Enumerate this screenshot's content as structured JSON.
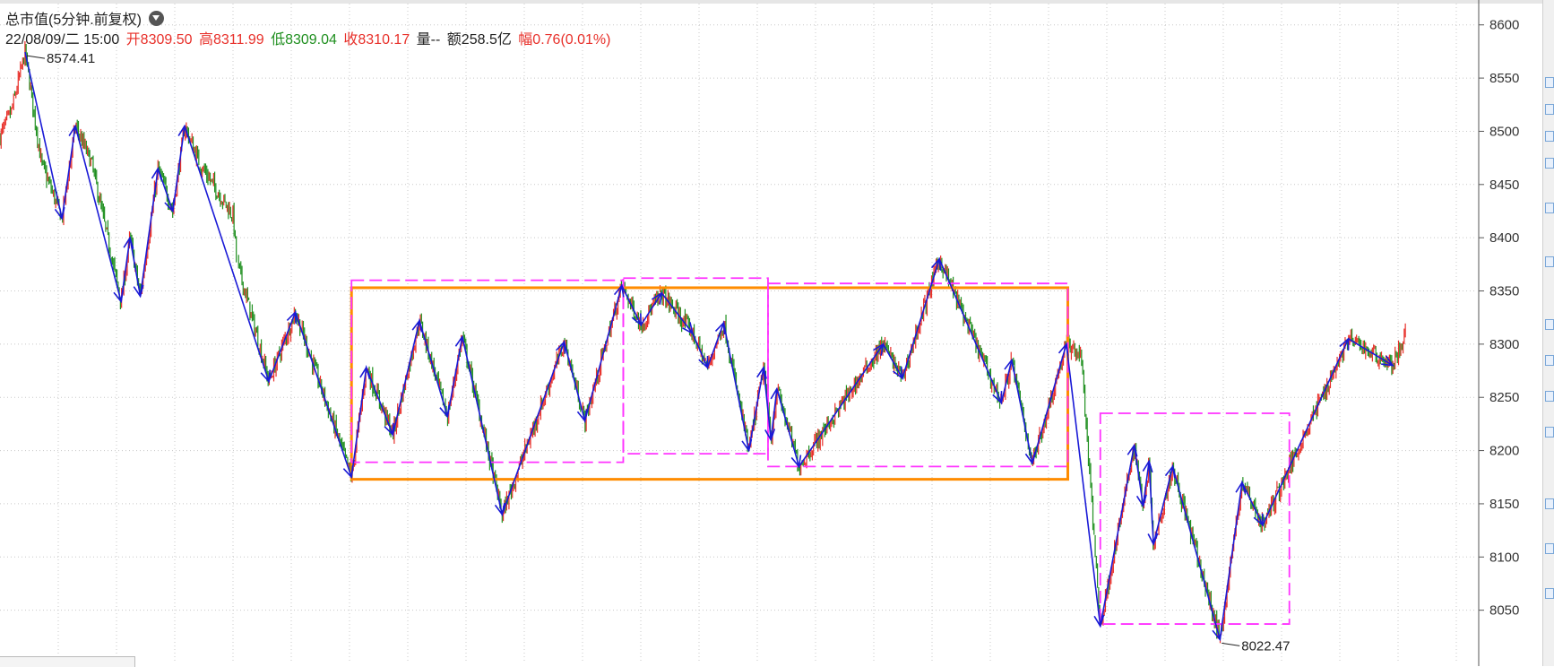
{
  "header": {
    "title": "总市值(5分钟.前复权)"
  },
  "bar_info": {
    "datetime": "22/08/09/二 15:00",
    "open": "开8309.50",
    "high": "高8311.99",
    "low": "低8309.04",
    "close": "收8310.17",
    "volume": "量--",
    "amount": "额258.5亿",
    "change": "幅0.76(0.01%)"
  },
  "colors": {
    "up": "#e8302a",
    "down": "#1f8f1f",
    "zigzag": "#1a1ad6",
    "center_box": "#ff8c00",
    "sub_box": "#ff33ff",
    "grid": "#c8c8c8"
  },
  "chart_data": {
    "type": "line",
    "ylim": [
      8000,
      8620
    ],
    "yticks": [
      8050,
      8100,
      8150,
      8200,
      8250,
      8300,
      8350,
      8400,
      8450,
      8500,
      8550,
      8600
    ],
    "grid": true,
    "xlim": [
      0,
      1000
    ],
    "price_path": [
      {
        "x": 0,
        "y": 8495
      },
      {
        "x": 8,
        "y": 8520
      },
      {
        "x": 17,
        "y": 8574.41
      },
      {
        "x": 28,
        "y": 8470
      },
      {
        "x": 42,
        "y": 8418
      },
      {
        "x": 51,
        "y": 8505
      },
      {
        "x": 62,
        "y": 8470
      },
      {
        "x": 82,
        "y": 8340
      },
      {
        "x": 88,
        "y": 8400
      },
      {
        "x": 95,
        "y": 8345
      },
      {
        "x": 107,
        "y": 8465
      },
      {
        "x": 117,
        "y": 8425
      },
      {
        "x": 125,
        "y": 8505
      },
      {
        "x": 135,
        "y": 8470
      },
      {
        "x": 158,
        "y": 8420
      },
      {
        "x": 160,
        "y": 8380
      },
      {
        "x": 182,
        "y": 8265
      },
      {
        "x": 200,
        "y": 8330
      },
      {
        "x": 238,
        "y": 8175
      },
      {
        "x": 248,
        "y": 8278
      },
      {
        "x": 266,
        "y": 8215
      },
      {
        "x": 284,
        "y": 8322
      },
      {
        "x": 303,
        "y": 8232
      },
      {
        "x": 313,
        "y": 8307
      },
      {
        "x": 340,
        "y": 8140
      },
      {
        "x": 382,
        "y": 8302
      },
      {
        "x": 396,
        "y": 8228
      },
      {
        "x": 421,
        "y": 8355
      },
      {
        "x": 434,
        "y": 8318
      },
      {
        "x": 448,
        "y": 8348
      },
      {
        "x": 469,
        "y": 8310
      },
      {
        "x": 479,
        "y": 8278
      },
      {
        "x": 490,
        "y": 8320
      },
      {
        "x": 507,
        "y": 8200
      },
      {
        "x": 517,
        "y": 8278
      },
      {
        "x": 522,
        "y": 8210
      },
      {
        "x": 526,
        "y": 8258
      },
      {
        "x": 541,
        "y": 8185
      },
      {
        "x": 598,
        "y": 8300
      },
      {
        "x": 611,
        "y": 8268
      },
      {
        "x": 636,
        "y": 8380
      },
      {
        "x": 678,
        "y": 8245
      },
      {
        "x": 685,
        "y": 8285
      },
      {
        "x": 699,
        "y": 8188
      },
      {
        "x": 722,
        "y": 8300
      },
      {
        "x": 732,
        "y": 8290
      },
      {
        "x": 745,
        "y": 8035
      },
      {
        "x": 768,
        "y": 8205
      },
      {
        "x": 774,
        "y": 8148
      },
      {
        "x": 778,
        "y": 8190
      },
      {
        "x": 781,
        "y": 8112
      },
      {
        "x": 794,
        "y": 8185
      },
      {
        "x": 826,
        "y": 8022.47
      },
      {
        "x": 841,
        "y": 8170
      },
      {
        "x": 855,
        "y": 8130
      },
      {
        "x": 913,
        "y": 8305
      },
      {
        "x": 943,
        "y": 8280
      },
      {
        "x": 952,
        "y": 8310
      }
    ],
    "zigzag": [
      {
        "x": 17,
        "y": 8574.41
      },
      {
        "x": 42,
        "y": 8418
      },
      {
        "x": 51,
        "y": 8505
      },
      {
        "x": 82,
        "y": 8340
      },
      {
        "x": 88,
        "y": 8400
      },
      {
        "x": 95,
        "y": 8345
      },
      {
        "x": 107,
        "y": 8465
      },
      {
        "x": 117,
        "y": 8425
      },
      {
        "x": 125,
        "y": 8505
      },
      {
        "x": 182,
        "y": 8265
      },
      {
        "x": 200,
        "y": 8330
      },
      {
        "x": 238,
        "y": 8175
      },
      {
        "x": 248,
        "y": 8278
      },
      {
        "x": 266,
        "y": 8215
      },
      {
        "x": 284,
        "y": 8322
      },
      {
        "x": 303,
        "y": 8232
      },
      {
        "x": 313,
        "y": 8307
      },
      {
        "x": 340,
        "y": 8140
      },
      {
        "x": 382,
        "y": 8302
      },
      {
        "x": 396,
        "y": 8228
      },
      {
        "x": 421,
        "y": 8355
      },
      {
        "x": 434,
        "y": 8318
      },
      {
        "x": 448,
        "y": 8348
      },
      {
        "x": 469,
        "y": 8310
      },
      {
        "x": 479,
        "y": 8278
      },
      {
        "x": 490,
        "y": 8320
      },
      {
        "x": 507,
        "y": 8200
      },
      {
        "x": 517,
        "y": 8278
      },
      {
        "x": 522,
        "y": 8210
      },
      {
        "x": 526,
        "y": 8258
      },
      {
        "x": 541,
        "y": 8185
      },
      {
        "x": 598,
        "y": 8300
      },
      {
        "x": 611,
        "y": 8268
      },
      {
        "x": 636,
        "y": 8380
      },
      {
        "x": 678,
        "y": 8245
      },
      {
        "x": 685,
        "y": 8285
      },
      {
        "x": 699,
        "y": 8188
      },
      {
        "x": 722,
        "y": 8300
      },
      {
        "x": 745,
        "y": 8035
      },
      {
        "x": 768,
        "y": 8205
      },
      {
        "x": 774,
        "y": 8148
      },
      {
        "x": 778,
        "y": 8190
      },
      {
        "x": 781,
        "y": 8112
      },
      {
        "x": 794,
        "y": 8185
      },
      {
        "x": 826,
        "y": 8022.47
      },
      {
        "x": 841,
        "y": 8170
      },
      {
        "x": 855,
        "y": 8130
      },
      {
        "x": 913,
        "y": 8305
      },
      {
        "x": 943,
        "y": 8280
      }
    ],
    "boxes": [
      {
        "kind": "center",
        "x0": 238,
        "x1": 723,
        "y_top": 8353,
        "y_bottom": 8173
      },
      {
        "kind": "sub",
        "x0": 238,
        "x1": 422,
        "y_top": 8360,
        "y_bottom": 8189
      },
      {
        "kind": "sub",
        "x0": 422,
        "x1": 520,
        "y_top": 8362,
        "y_bottom": 8197
      },
      {
        "kind": "sub",
        "x0": 520,
        "x1": 723,
        "y_top": 8357,
        "y_bottom": 8185
      },
      {
        "kind": "sub",
        "x0": 745,
        "x1": 873,
        "y_top": 8235,
        "y_bottom": 8037
      }
    ],
    "annotations": [
      {
        "text": "8574.41",
        "x": 17,
        "y": 8574.41,
        "side": "right"
      },
      {
        "text": "8022.47",
        "x": 826,
        "y": 8022.47,
        "side": "right"
      }
    ]
  }
}
